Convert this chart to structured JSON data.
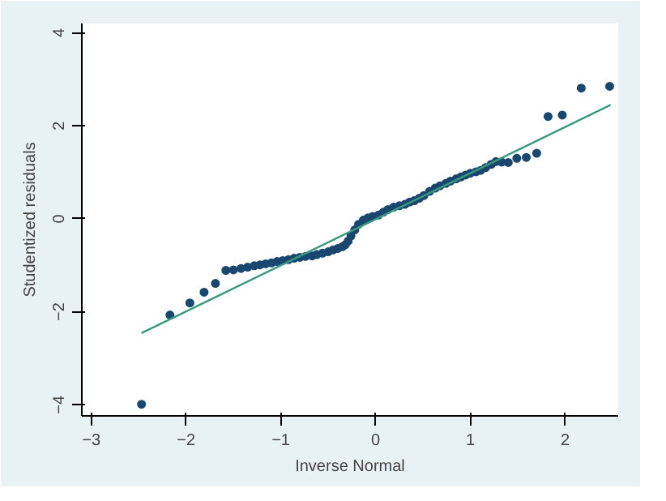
{
  "chart_data": {
    "type": "scatter",
    "xlabel": "Inverse Normal",
    "ylabel": "Studentized residuals",
    "xlim": [
      -3.1,
      2.56
    ],
    "ylim": [
      -4.24,
      4.2
    ],
    "xticks": [
      -3,
      -2,
      -1,
      0,
      1,
      2
    ],
    "yticks": [
      -4,
      -2,
      0,
      2,
      4
    ],
    "grid": false,
    "series": [
      {
        "marker": "circle",
        "color": "#1a476f",
        "x": [
          -2.47,
          -2.17,
          -1.96,
          -1.81,
          -1.69,
          -1.58,
          -1.5,
          -1.42,
          -1.35,
          -1.28,
          -1.22,
          -1.16,
          -1.1,
          -1.04,
          -0.98,
          -0.92,
          -0.86,
          -0.8,
          -0.74,
          -0.67,
          -0.62,
          -0.56,
          -0.5,
          -0.45,
          -0.4,
          -0.35,
          -0.32,
          -0.29,
          -0.26,
          -0.22,
          -0.18,
          -0.13,
          -0.08,
          -0.03,
          0.03,
          0.08,
          0.13,
          0.19,
          0.25,
          0.31,
          0.36,
          0.41,
          0.46,
          0.51,
          0.57,
          0.63,
          0.68,
          0.74,
          0.79,
          0.85,
          0.9,
          0.95,
          1.0,
          1.06,
          1.11,
          1.16,
          1.22,
          1.27,
          1.33,
          1.4,
          1.49,
          1.59,
          1.7,
          1.82,
          1.97,
          2.17,
          2.47
        ],
        "values": [
          -3.99,
          -2.07,
          -1.81,
          -1.58,
          -1.39,
          -1.11,
          -1.1,
          -1.07,
          -1.04,
          -1.01,
          -0.99,
          -0.97,
          -0.95,
          -0.92,
          -0.9,
          -0.88,
          -0.85,
          -0.83,
          -0.81,
          -0.8,
          -0.77,
          -0.74,
          -0.71,
          -0.67,
          -0.64,
          -0.6,
          -0.56,
          -0.48,
          -0.37,
          -0.24,
          -0.12,
          -0.03,
          0.02,
          0.05,
          0.08,
          0.14,
          0.2,
          0.25,
          0.28,
          0.31,
          0.36,
          0.39,
          0.44,
          0.5,
          0.59,
          0.66,
          0.71,
          0.76,
          0.81,
          0.86,
          0.9,
          0.94,
          0.98,
          1.01,
          1.04,
          1.1,
          1.17,
          1.23,
          1.22,
          1.21,
          1.3,
          1.32,
          1.41,
          2.2,
          2.23,
          2.81,
          2.85
        ]
      },
      {
        "type": "line",
        "color": "#3a9a7e",
        "x": [
          -2.47,
          2.48
        ],
        "values": [
          -2.46,
          2.45
        ]
      }
    ]
  }
}
